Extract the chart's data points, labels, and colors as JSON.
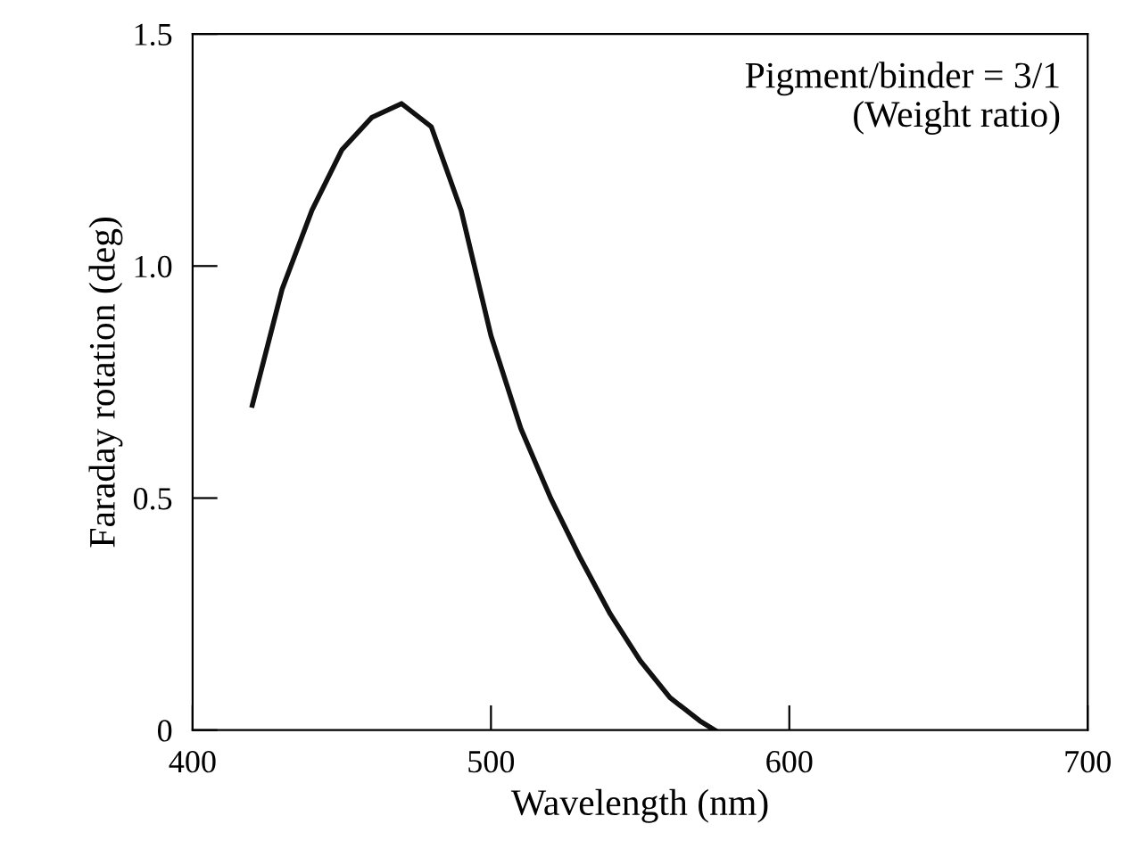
{
  "chart_data": {
    "type": "line",
    "xlabel": "Wavelength (nm)",
    "ylabel": "Faraday rotation (deg)",
    "annotations": [
      "Pigment/binder = 3/1\n(Weight ratio)"
    ],
    "series": [
      {
        "color": "#111111",
        "x": [
          420,
          430,
          440,
          450,
          460,
          470,
          480,
          490,
          500,
          510,
          520,
          530,
          540,
          550,
          560,
          570,
          575
        ],
        "values": [
          0.7,
          0.95,
          1.12,
          1.25,
          1.32,
          1.35,
          1.3,
          1.12,
          0.85,
          0.65,
          0.5,
          0.37,
          0.25,
          0.15,
          0.07,
          0.02,
          0.0
        ]
      }
    ],
    "xlim": [
      400,
      700
    ],
    "xticks": [
      400,
      500,
      600,
      700
    ],
    "ylim": [
      0,
      1.5
    ],
    "yticks": [
      0,
      {
        "value": 0.5,
        "label": "0.5"
      },
      {
        "value": 1.0,
        "label": "1.0"
      },
      {
        "value": 1.5,
        "label": "1.5"
      }
    ],
    "grid": false,
    "legend": false,
    "marker": "none",
    "line_style": "solid"
  }
}
